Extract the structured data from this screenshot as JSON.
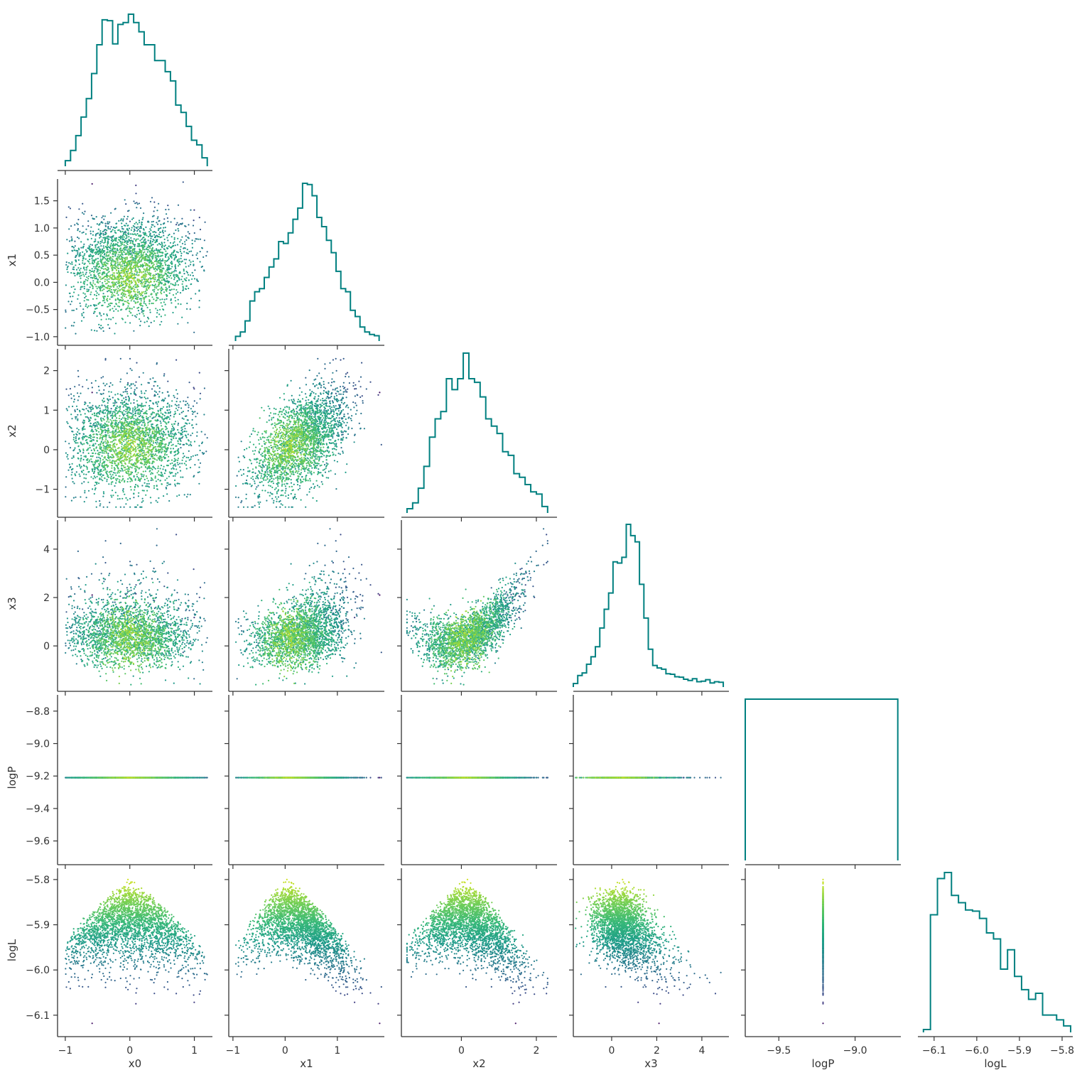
{
  "chart_data": {
    "type": "scatter",
    "variables": [
      "x0",
      "x1",
      "x2",
      "x3",
      "logP",
      "logL"
    ],
    "axis_labels": [
      "x0",
      "x1",
      "x2",
      "x3",
      "logP",
      "logL"
    ],
    "ranges": {
      "x0": [
        -1.12,
        1.28
      ],
      "x1": [
        -1.08,
        1.9
      ],
      "x2": [
        -1.6,
        2.55
      ],
      "x3": [
        -1.7,
        5.2
      ],
      "logP": [
        -9.72,
        -8.7
      ],
      "logL": [
        -6.138,
        -5.775
      ]
    },
    "ticks": {
      "x0": [
        -1,
        0,
        1
      ],
      "x1": [
        -1,
        0,
        1
      ],
      "x2": [
        0,
        2
      ],
      "x3": [
        0,
        2,
        4
      ],
      "logP": [
        -9.5,
        -9.0
      ],
      "logL": [
        -6.1,
        -6.0,
        -5.9,
        -5.8
      ]
    },
    "y_ticks": {
      "x1": [
        -1.0,
        -0.5,
        0.0,
        0.5,
        1.0,
        1.5
      ],
      "x2": [
        -1,
        0,
        1,
        2
      ],
      "x3": [
        0,
        2,
        4
      ],
      "logP": [
        -9.6,
        -9.4,
        -9.2,
        -9.0,
        -8.8
      ],
      "logL": [
        -6.1,
        -6.0,
        -5.9,
        -5.8
      ]
    },
    "tick_label_text": {
      "x0": [
        "−1",
        "0",
        "1"
      ],
      "x1": [
        "−1",
        "0",
        "1"
      ],
      "x2": [
        "0",
        "2"
      ],
      "x3": [
        "0",
        "2",
        "4"
      ],
      "logP": [
        "−9.5",
        "−9.0"
      ],
      "logL": [
        "−6.1",
        "−6.0",
        "−5.9",
        "−5.8"
      ]
    },
    "y_tick_label_text": {
      "x1": [
        "−1.0",
        "−0.5",
        "0.0",
        "0.5",
        "1.0",
        "1.5"
      ],
      "x2": [
        "−1",
        "0",
        "1",
        "2"
      ],
      "x3": [
        "0",
        "2",
        "4"
      ],
      "logP": [
        "−9.6",
        "−9.4",
        "−9.2",
        "−9.0",
        "−8.8"
      ],
      "logL": [
        "−6.1",
        "−6.0",
        "−5.9",
        "−5.8"
      ]
    },
    "logP_value": -9.21,
    "histograms": {
      "x0": {
        "range": [
          -1.0,
          1.2
        ],
        "counts": [
          3,
          14,
          30,
          50,
          70,
          97,
          128,
          155,
          154,
          129,
          150,
          152,
          161,
          152,
          142,
          128,
          128,
          111,
          111,
          99,
          89,
          63,
          55,
          40,
          25,
          20,
          6
        ]
      },
      "x1": {
        "range": [
          -0.95,
          1.8
        ],
        "counts": [
          3,
          10,
          28,
          60,
          75,
          80,
          98,
          115,
          128,
          156,
          153,
          170,
          192,
          210,
          250,
          248,
          230,
          195,
          180,
          158,
          138,
          108,
          80,
          75,
          45,
          35,
          18,
          10,
          6,
          4
        ]
      },
      "x2": {
        "range": [
          -1.45,
          2.3
        ],
        "counts": [
          2,
          10,
          30,
          60,
          100,
          125,
          135,
          180,
          165,
          180,
          215,
          180,
          175,
          155,
          125,
          115,
          105,
          80,
          75,
          50,
          45,
          35,
          25,
          22,
          5
        ]
      },
      "x3": {
        "range": [
          -1.7,
          4.95
        ],
        "counts": [
          3,
          35,
          45,
          80,
          110,
          150,
          225,
          300,
          365,
          490,
          485,
          508,
          640,
          595,
          570,
          400,
          265,
          140,
          75,
          65,
          60,
          42,
          40,
          30,
          28,
          20,
          15,
          22,
          10,
          12,
          18,
          5,
          10,
          8
        ]
      },
      "logP": {
        "range": [
          -9.72,
          -8.72
        ],
        "counts": [
          1
        ]
      },
      "logL": {
        "range": [
          -6.125,
          -5.78
        ],
        "counts": [
          0,
          95,
          125,
          130,
          111,
          105,
          99,
          98,
          92,
          80,
          75,
          50,
          66,
          44,
          33,
          25,
          30,
          12,
          12,
          8,
          3
        ]
      }
    }
  },
  "colors": {
    "histogram_line": "#008080",
    "axis": "#333333",
    "colormap": "viridis"
  }
}
